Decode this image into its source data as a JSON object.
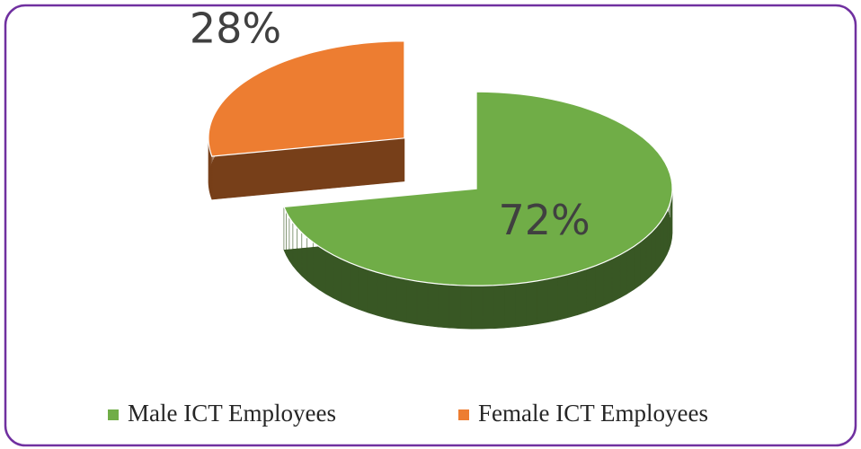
{
  "chart_data": {
    "type": "pie",
    "categories": [
      "Male ICT Employees",
      "Female ICT Employees"
    ],
    "values": [
      72,
      28
    ],
    "value_labels": [
      "72%",
      "28%"
    ],
    "colors": [
      "#70ad47",
      "#ed7d31"
    ],
    "legend": "bottom"
  }
}
